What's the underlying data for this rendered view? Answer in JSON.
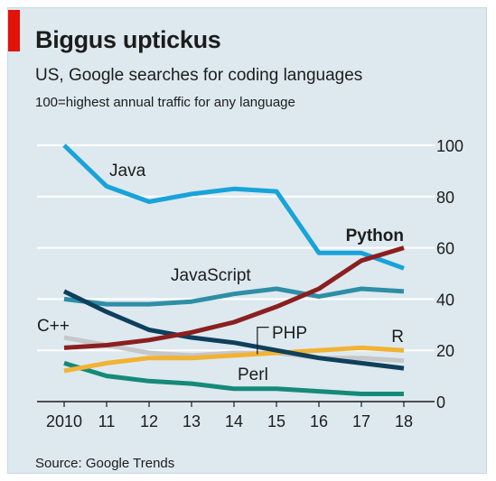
{
  "header": {
    "title": "Biggus uptickus",
    "subtitle": "US, Google searches for coding languages",
    "note": "100=highest annual traffic for any language"
  },
  "footer": {
    "source": "Source: Google Trends"
  },
  "colors": {
    "accent": "#e3120b",
    "background": "#dde9ef",
    "grid": "#ffffff",
    "Java": "#18a3d9",
    "JavaScript": "#2f8ea6",
    "Python": "#8b1f1f",
    "C++": "#0f3f5c",
    "PHP": "#f2b233",
    "R": "#c5c7c9",
    "Perl": "#168a78"
  },
  "chart_data": {
    "type": "line",
    "x": [
      2010,
      2011,
      2012,
      2013,
      2014,
      2015,
      2016,
      2017,
      2018
    ],
    "x_tick_labels": [
      "2010",
      "11",
      "12",
      "13",
      "14",
      "15",
      "16",
      "17",
      "18"
    ],
    "y_ticks": [
      0,
      20,
      40,
      60,
      80,
      100
    ],
    "ylim": [
      0,
      100
    ],
    "grid": true,
    "y_axis_side": "right",
    "series": [
      {
        "name": "Java",
        "values": [
          100,
          84,
          78,
          81,
          83,
          82,
          58,
          58,
          52
        ]
      },
      {
        "name": "JavaScript",
        "values": [
          40,
          38,
          38,
          39,
          42,
          44,
          41,
          44,
          43
        ]
      },
      {
        "name": "Python",
        "values": [
          21,
          22,
          24,
          27,
          31,
          37,
          44,
          55,
          60
        ]
      },
      {
        "name": "C++",
        "values": [
          43,
          35,
          28,
          25,
          23,
          20,
          17,
          15,
          13
        ]
      },
      {
        "name": "PHP",
        "values": [
          12,
          15,
          17,
          17,
          18,
          19,
          20,
          21,
          20
        ]
      },
      {
        "name": "R",
        "values": [
          25,
          22,
          19,
          18,
          19,
          19,
          17,
          17,
          16
        ]
      },
      {
        "name": "Perl",
        "values": [
          15,
          10,
          8,
          7,
          5,
          5,
          4,
          3,
          3
        ]
      }
    ]
  }
}
